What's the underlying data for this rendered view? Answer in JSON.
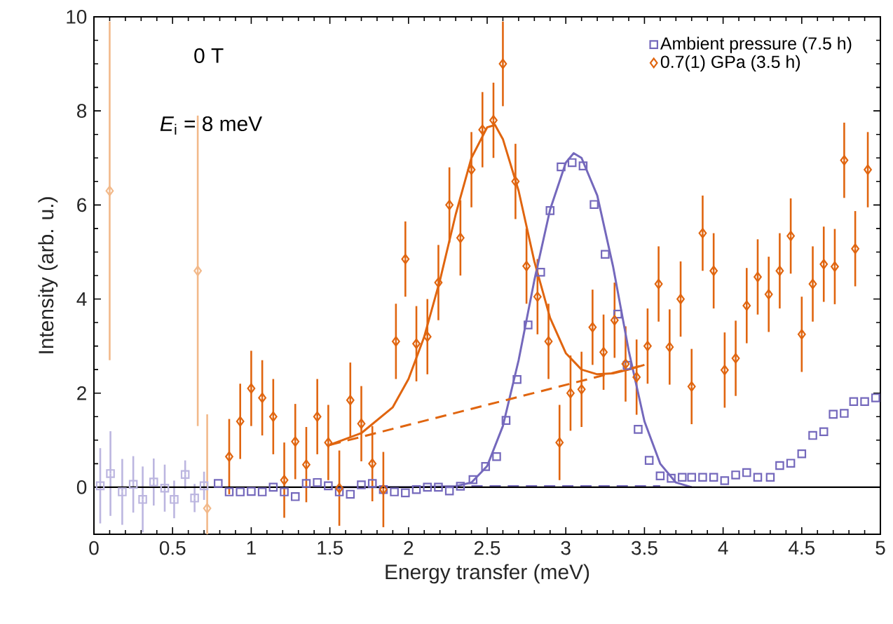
{
  "chart_data": {
    "type": "scatter",
    "xlabel": "Energy transfer (meV)",
    "ylabel": "Intensity (arb. u.)",
    "xlim": [
      0,
      5
    ],
    "ylim": [
      -1,
      10
    ],
    "xticks": [
      0,
      0.5,
      1,
      1.5,
      2,
      2.5,
      3,
      3.5,
      4,
      4.5,
      5
    ],
    "yticks": [
      0,
      2,
      4,
      6,
      8,
      10
    ],
    "legend": "top right",
    "grid": false,
    "annotations": [
      "0 T",
      "*E*$_{i}$ = 8 meV"
    ],
    "ref_lines": [
      {
        "axis": "y",
        "value": 0,
        "color": "#000000",
        "line_style": "solid"
      }
    ],
    "series": [
      {
        "color": "#f2b98a",
        "marker": "diamond",
        "x": [
          0.1,
          0.66,
          0.72
        ],
        "values": [
          6.3,
          4.6,
          -0.45
        ],
        "errors": [
          3.6,
          3.3,
          2.0
        ]
      },
      {
        "color": "#bcb6e0",
        "marker": "square",
        "x": [
          0.04,
          0.105,
          0.18,
          0.25,
          0.31,
          0.38,
          0.45,
          0.51,
          0.58,
          0.64,
          0.7
        ],
        "values": [
          0.03,
          0.29,
          -0.1,
          0.06,
          -0.26,
          0.11,
          -0.02,
          -0.26,
          0.27,
          -0.23,
          0.03
        ],
        "errors": [
          0.8,
          0.9,
          0.7,
          0.6,
          0.7,
          0.5,
          0.5,
          0.4,
          0.3,
          0.3,
          0.3
        ]
      },
      {
        "name": "Ambient pressure (7.5 h)",
        "color": "#7468bc",
        "marker": "square",
        "x": [
          0.79,
          0.86,
          0.93,
          1.0,
          1.07,
          1.14,
          1.21,
          1.28,
          1.35,
          1.42,
          1.49,
          1.56,
          1.63,
          1.7,
          1.77,
          1.84,
          1.91,
          1.98,
          2.05,
          2.12,
          2.19,
          2.26,
          2.33,
          2.41,
          2.49,
          2.56,
          2.62,
          2.69,
          2.76,
          2.84,
          2.9,
          2.97,
          3.04,
          3.11,
          3.18,
          3.25,
          3.33,
          3.39,
          3.46,
          3.53,
          3.6,
          3.67,
          3.74,
          3.8,
          3.87,
          3.94,
          4.01,
          4.08,
          4.15,
          4.22,
          4.3,
          4.36,
          4.43,
          4.5,
          4.57,
          4.64,
          4.7,
          4.77,
          4.83,
          4.9,
          4.97
        ],
        "values": [
          0.08,
          -0.1,
          -0.1,
          -0.09,
          -0.1,
          0.0,
          -0.1,
          -0.2,
          0.08,
          0.1,
          0.03,
          -0.1,
          -0.15,
          0.05,
          0.08,
          -0.05,
          -0.1,
          -0.12,
          -0.05,
          0.0,
          0.0,
          -0.08,
          0.02,
          0.16,
          0.44,
          0.65,
          1.42,
          2.29,
          3.45,
          4.57,
          5.88,
          6.81,
          6.9,
          6.83,
          6.01,
          4.95,
          3.68,
          2.59,
          1.23,
          0.57,
          0.24,
          0.19,
          0.21,
          0.21,
          0.21,
          0.21,
          0.14,
          0.26,
          0.31,
          0.21,
          0.21,
          0.46,
          0.51,
          0.71,
          1.1,
          1.18,
          1.55,
          1.57,
          1.82,
          1.82,
          1.9
        ]
      },
      {
        "name": "0.7(1) GPa (3.5 h)",
        "color": "#e0650f",
        "marker": "diamond",
        "x": [
          0.86,
          0.93,
          1.0,
          1.07,
          1.14,
          1.21,
          1.28,
          1.35,
          1.42,
          1.49,
          1.56,
          1.63,
          1.7,
          1.77,
          1.84,
          1.92,
          1.98,
          2.05,
          2.12,
          2.19,
          2.26,
          2.33,
          2.4,
          2.47,
          2.54,
          2.6,
          2.68,
          2.75,
          2.82,
          2.89,
          2.96,
          3.03,
          3.1,
          3.17,
          3.24,
          3.31,
          3.38,
          3.45,
          3.52,
          3.59,
          3.66,
          3.73,
          3.8,
          3.87,
          3.94,
          4.01,
          4.08,
          4.15,
          4.22,
          4.29,
          4.36,
          4.43,
          4.5,
          4.57,
          4.64,
          4.71,
          4.77,
          4.84,
          4.92
        ],
        "values": [
          0.65,
          1.4,
          2.1,
          1.9,
          1.5,
          0.15,
          0.97,
          0.48,
          1.5,
          0.95,
          -0.02,
          1.85,
          1.35,
          0.5,
          -0.05,
          3.1,
          4.85,
          3.05,
          3.2,
          4.35,
          6.0,
          5.3,
          6.75,
          7.6,
          7.8,
          9.0,
          6.5,
          4.7,
          4.05,
          3.1,
          0.95,
          2.0,
          2.08,
          3.4,
          2.87,
          3.55,
          2.62,
          2.34,
          3.0,
          4.32,
          2.98,
          4.0,
          2.14,
          5.4,
          4.6,
          2.49,
          2.74,
          3.86,
          4.47,
          4.1,
          4.6,
          5.34,
          3.25,
          4.32,
          4.74,
          4.69,
          6.95,
          5.07,
          6.75
        ],
        "errors": [
          0.8,
          0.8,
          0.8,
          0.8,
          0.8,
          0.8,
          0.8,
          0.8,
          0.8,
          0.8,
          0.8,
          0.8,
          0.8,
          0.8,
          0.8,
          0.8,
          0.8,
          0.8,
          0.8,
          0.8,
          0.8,
          0.8,
          0.8,
          0.8,
          0.8,
          0.9,
          0.8,
          0.8,
          0.8,
          0.8,
          0.8,
          0.8,
          0.8,
          0.8,
          0.8,
          0.8,
          0.8,
          0.8,
          0.8,
          0.8,
          0.8,
          0.8,
          0.8,
          0.8,
          0.8,
          0.8,
          0.8,
          0.8,
          0.8,
          0.8,
          0.8,
          0.8,
          0.8,
          0.8,
          0.8,
          0.8,
          0.8,
          0.8,
          0.8
        ]
      },
      {
        "type": "line",
        "color": "#7468bc",
        "marker": "none",
        "line_style": "solid",
        "x": [
          1.5,
          2.0,
          2.3,
          2.4,
          2.5,
          2.6,
          2.7,
          2.8,
          2.9,
          3.0,
          3.05,
          3.1,
          3.2,
          3.3,
          3.4,
          3.5,
          3.6,
          3.7,
          3.8
        ],
        "values": [
          0.0,
          0.0,
          0.02,
          0.1,
          0.45,
          1.3,
          2.7,
          4.4,
          5.9,
          6.9,
          7.1,
          7.0,
          6.2,
          4.7,
          2.9,
          1.4,
          0.5,
          0.1,
          0.0
        ]
      },
      {
        "type": "line",
        "color": "#7468bc",
        "marker": "none",
        "line_style": "dashed",
        "x": [
          2.4,
          3.6
        ],
        "values": [
          0.02,
          0.02
        ]
      },
      {
        "type": "line",
        "color": "#e0650f",
        "marker": "none",
        "line_style": "solid",
        "x": [
          1.5,
          1.7,
          1.9,
          2.0,
          2.1,
          2.2,
          2.3,
          2.4,
          2.5,
          2.55,
          2.6,
          2.7,
          2.8,
          2.9,
          3.0,
          3.1,
          3.2,
          3.3,
          3.4,
          3.5
        ],
        "values": [
          0.9,
          1.15,
          1.7,
          2.3,
          3.2,
          4.4,
          5.8,
          7.0,
          7.65,
          7.7,
          7.4,
          6.3,
          4.8,
          3.6,
          2.85,
          2.5,
          2.4,
          2.42,
          2.5,
          2.6
        ]
      },
      {
        "type": "line",
        "color": "#e0650f",
        "marker": "none",
        "line_style": "dashed",
        "x": [
          1.5,
          3.5
        ],
        "values": [
          0.9,
          2.6
        ]
      }
    ]
  }
}
